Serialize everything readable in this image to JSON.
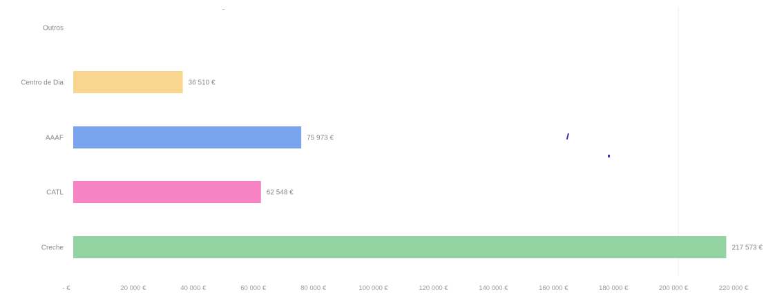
{
  "chart_data": {
    "type": "bar",
    "orientation": "horizontal",
    "categories": [
      "Outros",
      "Centro de Dia",
      "AAAF",
      "CATL",
      "Creche"
    ],
    "values": [
      0,
      36510,
      75973,
      62548,
      217573
    ],
    "value_labels": [
      "",
      "36 510 €",
      "75 973 €",
      "62 548 €",
      "217 573 €"
    ],
    "colors": [
      "#cccccc",
      "#f9d690",
      "#7aa5ee",
      "#f684c4",
      "#93d3a2"
    ],
    "xlim": [
      0,
      220000
    ],
    "x_ticks": [
      0,
      20000,
      40000,
      60000,
      80000,
      100000,
      120000,
      140000,
      160000,
      180000,
      200000,
      220000
    ],
    "x_tick_labels": [
      "- €",
      "20 000 €",
      "40 000 €",
      "60 000 €",
      "80 000 €",
      "100 000 €",
      "120 000 €",
      "140 000 €",
      "160 000 €",
      "180 000 €",
      "200 000 €",
      "220 000 €"
    ],
    "title": "",
    "xlabel": "",
    "ylabel": "",
    "grid": false,
    "legend": "none"
  }
}
